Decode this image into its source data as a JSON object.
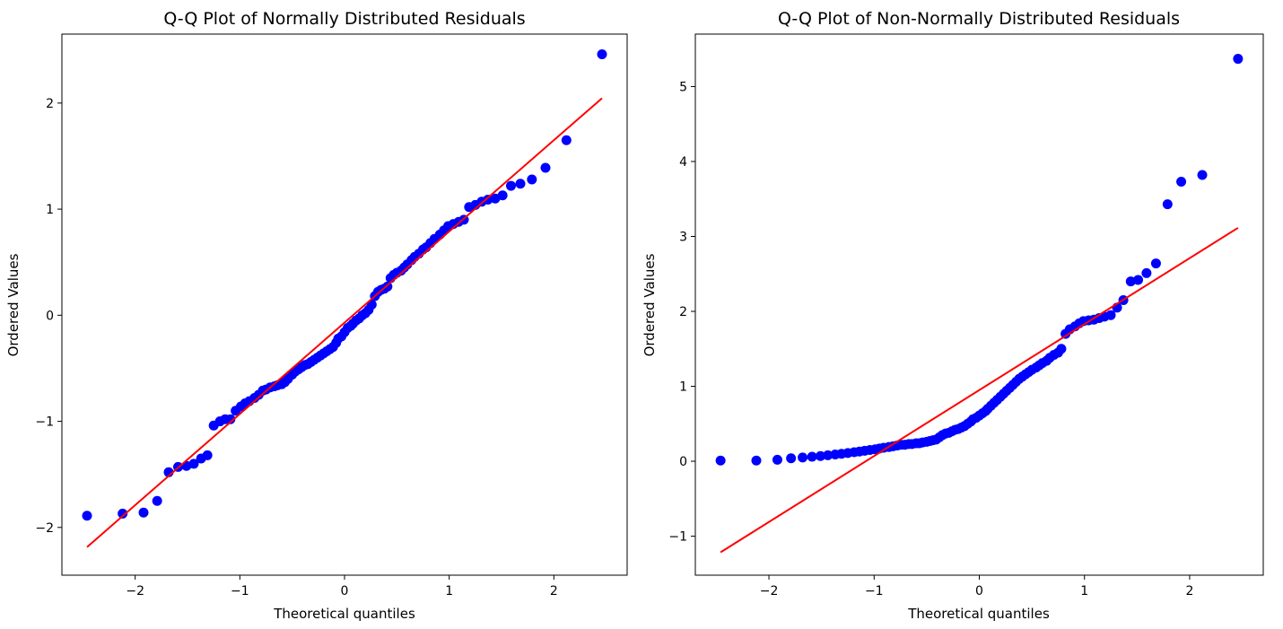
{
  "chart_data": [
    {
      "type": "scatter",
      "title": "Q-Q Plot of Normally Distributed Residuals",
      "xlabel": "Theoretical quantiles",
      "ylabel": "Ordered Values",
      "xlim": [
        -2.7,
        2.7
      ],
      "ylim": [
        -2.45,
        2.65
      ],
      "xticks": [
        -2,
        -1,
        0,
        1,
        2
      ],
      "yticks": [
        -2,
        -1,
        0,
        1,
        2
      ],
      "grid": false,
      "colors": {
        "points": "#0000ff",
        "line": "#ff0000"
      },
      "fit_line": {
        "slope": 0.86,
        "intercept": -0.07
      },
      "points": [
        [
          -2.46,
          -1.89
        ],
        [
          -2.12,
          -1.87
        ],
        [
          -1.92,
          -1.86
        ],
        [
          -1.79,
          -1.75
        ],
        [
          -1.68,
          -1.48
        ],
        [
          -1.59,
          -1.43
        ],
        [
          -1.51,
          -1.42
        ],
        [
          -1.44,
          -1.4
        ],
        [
          -1.37,
          -1.35
        ],
        [
          -1.31,
          -1.32
        ],
        [
          -1.25,
          -1.04
        ],
        [
          -1.19,
          -1.0
        ],
        [
          -1.14,
          -0.98
        ],
        [
          -1.09,
          -0.98
        ],
        [
          -1.04,
          -0.9
        ],
        [
          -0.99,
          -0.86
        ],
        [
          -0.95,
          -0.83
        ],
        [
          -0.91,
          -0.81
        ],
        [
          -0.86,
          -0.78
        ],
        [
          -0.82,
          -0.75
        ],
        [
          -0.78,
          -0.71
        ],
        [
          -0.75,
          -0.7
        ],
        [
          -0.71,
          -0.68
        ],
        [
          -0.67,
          -0.67
        ],
        [
          -0.64,
          -0.66
        ],
        [
          -0.6,
          -0.65
        ],
        [
          -0.57,
          -0.63
        ],
        [
          -0.54,
          -0.6
        ],
        [
          -0.5,
          -0.56
        ],
        [
          -0.47,
          -0.53
        ],
        [
          -0.44,
          -0.51
        ],
        [
          -0.41,
          -0.49
        ],
        [
          -0.38,
          -0.47
        ],
        [
          -0.35,
          -0.46
        ],
        [
          -0.32,
          -0.44
        ],
        [
          -0.29,
          -0.42
        ],
        [
          -0.26,
          -0.4
        ],
        [
          -0.23,
          -0.38
        ],
        [
          -0.2,
          -0.36
        ],
        [
          -0.17,
          -0.34
        ],
        [
          -0.14,
          -0.32
        ],
        [
          -0.11,
          -0.3
        ],
        [
          -0.08,
          -0.26
        ],
        [
          -0.06,
          -0.22
        ],
        [
          -0.03,
          -0.2
        ],
        [
          0.0,
          -0.16
        ],
        [
          0.03,
          -0.12
        ],
        [
          0.06,
          -0.1
        ],
        [
          0.08,
          -0.08
        ],
        [
          0.11,
          -0.05
        ],
        [
          0.14,
          -0.03
        ],
        [
          0.17,
          0.0
        ],
        [
          0.2,
          0.02
        ],
        [
          0.23,
          0.05
        ],
        [
          0.26,
          0.1
        ],
        [
          0.29,
          0.18
        ],
        [
          0.32,
          0.22
        ],
        [
          0.35,
          0.24
        ],
        [
          0.38,
          0.25
        ],
        [
          0.41,
          0.27
        ],
        [
          0.44,
          0.35
        ],
        [
          0.47,
          0.38
        ],
        [
          0.5,
          0.4
        ],
        [
          0.54,
          0.42
        ],
        [
          0.57,
          0.45
        ],
        [
          0.6,
          0.48
        ],
        [
          0.64,
          0.52
        ],
        [
          0.67,
          0.55
        ],
        [
          0.71,
          0.58
        ],
        [
          0.75,
          0.62
        ],
        [
          0.78,
          0.64
        ],
        [
          0.82,
          0.68
        ],
        [
          0.86,
          0.72
        ],
        [
          0.91,
          0.76
        ],
        [
          0.95,
          0.8
        ],
        [
          0.99,
          0.84
        ],
        [
          1.04,
          0.86
        ],
        [
          1.09,
          0.88
        ],
        [
          1.14,
          0.9
        ],
        [
          1.19,
          1.02
        ],
        [
          1.25,
          1.04
        ],
        [
          1.31,
          1.07
        ],
        [
          1.37,
          1.09
        ],
        [
          1.44,
          1.1
        ],
        [
          1.51,
          1.13
        ],
        [
          1.59,
          1.22
        ],
        [
          1.68,
          1.24
        ],
        [
          1.79,
          1.28
        ],
        [
          1.92,
          1.39
        ],
        [
          2.12,
          1.65
        ],
        [
          2.46,
          2.46
        ]
      ]
    },
    {
      "type": "scatter",
      "title": "Q-Q Plot of Non-Normally Distributed Residuals",
      "xlabel": "Theoretical quantiles",
      "ylabel": "Ordered Values",
      "xlim": [
        -2.7,
        2.7
      ],
      "ylim": [
        -1.52,
        5.7
      ],
      "xticks": [
        -2,
        -1,
        0,
        1,
        2
      ],
      "yticks": [
        -1,
        0,
        1,
        2,
        3,
        4,
        5
      ],
      "grid": false,
      "colors": {
        "points": "#0000ff",
        "line": "#ff0000"
      },
      "fit_line": {
        "slope": 0.88,
        "intercept": 0.95
      },
      "points": [
        [
          -2.46,
          0.01
        ],
        [
          -2.12,
          0.01
        ],
        [
          -1.92,
          0.02
        ],
        [
          -1.79,
          0.04
        ],
        [
          -1.68,
          0.05
        ],
        [
          -1.59,
          0.06
        ],
        [
          -1.51,
          0.07
        ],
        [
          -1.44,
          0.08
        ],
        [
          -1.37,
          0.09
        ],
        [
          -1.31,
          0.1
        ],
        [
          -1.25,
          0.11
        ],
        [
          -1.19,
          0.12
        ],
        [
          -1.14,
          0.13
        ],
        [
          -1.09,
          0.14
        ],
        [
          -1.04,
          0.15
        ],
        [
          -0.99,
          0.16
        ],
        [
          -0.95,
          0.17
        ],
        [
          -0.91,
          0.18
        ],
        [
          -0.86,
          0.19
        ],
        [
          -0.82,
          0.2
        ],
        [
          -0.78,
          0.21
        ],
        [
          -0.75,
          0.22
        ],
        [
          -0.71,
          0.22
        ],
        [
          -0.67,
          0.23
        ],
        [
          -0.64,
          0.23
        ],
        [
          -0.6,
          0.24
        ],
        [
          -0.57,
          0.24
        ],
        [
          -0.54,
          0.25
        ],
        [
          -0.5,
          0.26
        ],
        [
          -0.47,
          0.27
        ],
        [
          -0.44,
          0.28
        ],
        [
          -0.41,
          0.29
        ],
        [
          -0.38,
          0.32
        ],
        [
          -0.35,
          0.35
        ],
        [
          -0.32,
          0.37
        ],
        [
          -0.29,
          0.38
        ],
        [
          -0.26,
          0.4
        ],
        [
          -0.23,
          0.42
        ],
        [
          -0.2,
          0.43
        ],
        [
          -0.17,
          0.45
        ],
        [
          -0.14,
          0.47
        ],
        [
          -0.11,
          0.5
        ],
        [
          -0.08,
          0.53
        ],
        [
          -0.06,
          0.56
        ],
        [
          -0.03,
          0.58
        ],
        [
          0.0,
          0.61
        ],
        [
          0.03,
          0.64
        ],
        [
          0.06,
          0.67
        ],
        [
          0.08,
          0.7
        ],
        [
          0.11,
          0.74
        ],
        [
          0.14,
          0.78
        ],
        [
          0.17,
          0.82
        ],
        [
          0.2,
          0.86
        ],
        [
          0.23,
          0.9
        ],
        [
          0.26,
          0.94
        ],
        [
          0.29,
          0.98
        ],
        [
          0.32,
          1.02
        ],
        [
          0.35,
          1.06
        ],
        [
          0.38,
          1.1
        ],
        [
          0.41,
          1.13
        ],
        [
          0.44,
          1.16
        ],
        [
          0.47,
          1.19
        ],
        [
          0.5,
          1.22
        ],
        [
          0.54,
          1.25
        ],
        [
          0.57,
          1.28
        ],
        [
          0.6,
          1.31
        ],
        [
          0.64,
          1.34
        ],
        [
          0.67,
          1.38
        ],
        [
          0.71,
          1.42
        ],
        [
          0.75,
          1.45
        ],
        [
          0.78,
          1.5
        ],
        [
          0.82,
          1.7
        ],
        [
          0.86,
          1.76
        ],
        [
          0.91,
          1.8
        ],
        [
          0.95,
          1.84
        ],
        [
          0.99,
          1.87
        ],
        [
          1.04,
          1.88
        ],
        [
          1.09,
          1.89
        ],
        [
          1.14,
          1.91
        ],
        [
          1.19,
          1.93
        ],
        [
          1.25,
          1.95
        ],
        [
          1.31,
          2.05
        ],
        [
          1.37,
          2.15
        ],
        [
          1.44,
          2.4
        ],
        [
          1.51,
          2.42
        ],
        [
          1.59,
          2.51
        ],
        [
          1.68,
          2.64
        ],
        [
          1.79,
          3.43
        ],
        [
          1.92,
          3.73
        ],
        [
          2.12,
          3.82
        ],
        [
          2.46,
          5.37
        ]
      ]
    }
  ]
}
